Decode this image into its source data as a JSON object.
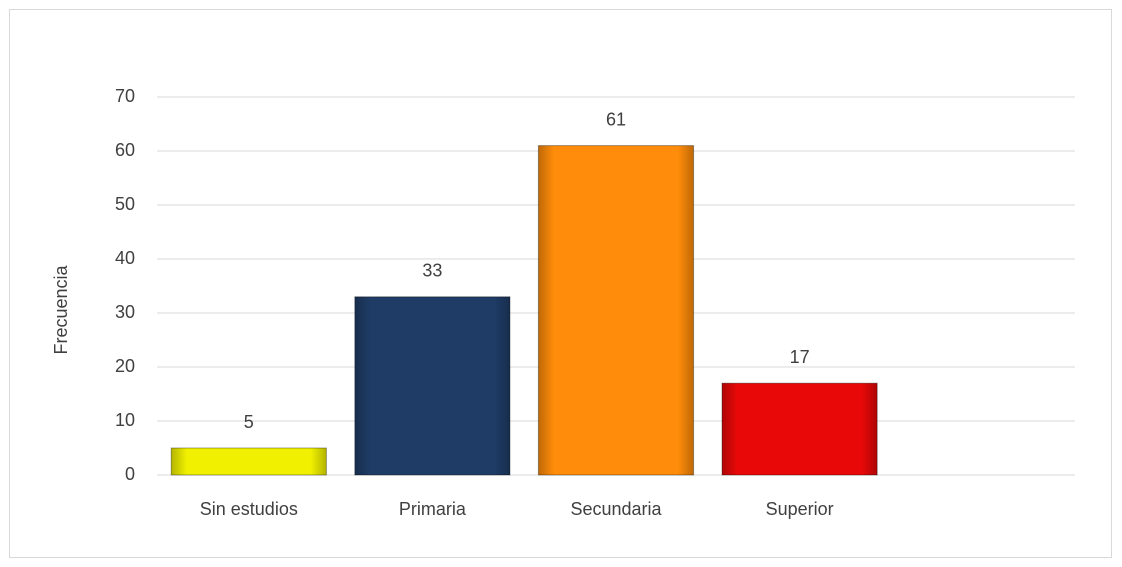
{
  "chart_data": {
    "type": "bar",
    "y_label": "Frecuencia",
    "categories": [
      "Sin estudios",
      "Primaria",
      "Secundaria",
      "Superior",
      null
    ],
    "values": [
      5,
      33,
      61,
      17,
      null
    ],
    "colors": [
      "#f0f000",
      "#1f3c66",
      "#ff8c0a",
      "#e80808",
      null
    ],
    "ylim": [
      0,
      70
    ],
    "yticks": [
      0,
      10,
      20,
      30,
      40,
      50,
      60,
      70
    ],
    "grid": true
  }
}
